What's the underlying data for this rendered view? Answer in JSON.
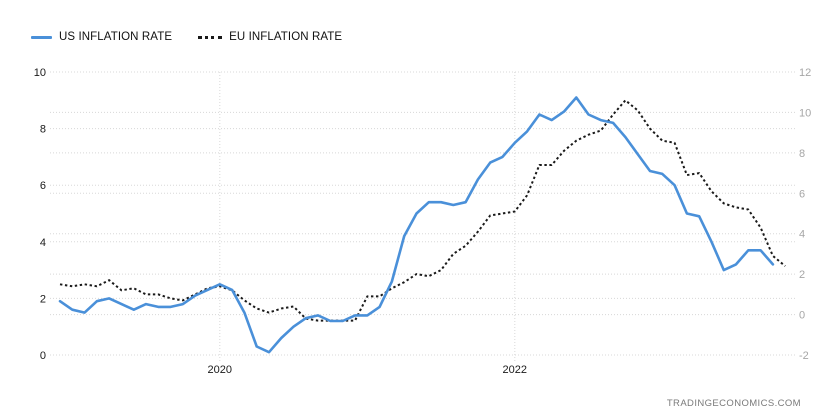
{
  "watermark": "TRADINGECONOMICS.COM",
  "colors": {
    "us_line": "#4a90d9",
    "eu_line": "#1a1a1a",
    "grid": "#d8d8d8",
    "axis_text": "#1a1a1a",
    "axis_text_right": "#a6a6a6",
    "watermark": "#7a7a7a",
    "background": "#ffffff"
  },
  "chart_data": {
    "type": "line",
    "title": "",
    "interval": "monthly",
    "x_start": "2018-12",
    "grid": true,
    "legend_position": "top-left",
    "x_ticks": [
      {
        "label": "2020",
        "month_index": 13
      },
      {
        "label": "2022",
        "month_index": 37
      }
    ],
    "left_axis": {
      "min": 0,
      "max": 10,
      "ticks": [
        0,
        2,
        4,
        6,
        8,
        10
      ]
    },
    "right_axis": {
      "min": -2,
      "max": 12,
      "ticks": [
        -2,
        0,
        2,
        4,
        6,
        8,
        10,
        12
      ]
    },
    "series": [
      {
        "key": "us",
        "name": "US INFLATION RATE",
        "axis": "left",
        "style": "solid",
        "color": "#4a90d9",
        "values": [
          1.9,
          1.6,
          1.5,
          1.9,
          2.0,
          1.8,
          1.6,
          1.8,
          1.7,
          1.7,
          1.8,
          2.1,
          2.3,
          2.5,
          2.3,
          1.5,
          0.3,
          0.1,
          0.6,
          1.0,
          1.3,
          1.4,
          1.2,
          1.2,
          1.4,
          1.4,
          1.7,
          2.6,
          4.2,
          5.0,
          5.4,
          5.4,
          5.3,
          5.4,
          6.2,
          6.8,
          7.0,
          7.5,
          7.9,
          8.5,
          8.3,
          8.6,
          9.1,
          8.5,
          8.3,
          8.2,
          7.7,
          7.1,
          6.5,
          6.4,
          6.0,
          5.0,
          4.9,
          4.0,
          3.0,
          3.2,
          3.7,
          3.7,
          3.2
        ]
      },
      {
        "key": "eu",
        "name": "EU INFLATION RATE",
        "axis": "right",
        "style": "dotted",
        "color": "#1a1a1a",
        "values": [
          1.5,
          1.4,
          1.5,
          1.4,
          1.7,
          1.2,
          1.3,
          1.0,
          1.0,
          0.8,
          0.7,
          1.0,
          1.3,
          1.4,
          1.2,
          0.7,
          0.3,
          0.1,
          0.3,
          0.4,
          -0.2,
          -0.3,
          -0.3,
          -0.3,
          -0.3,
          0.9,
          0.9,
          1.3,
          1.6,
          2.0,
          1.9,
          2.2,
          3.0,
          3.4,
          4.1,
          4.9,
          5.0,
          5.1,
          5.9,
          7.4,
          7.4,
          8.1,
          8.6,
          8.9,
          9.1,
          9.9,
          10.6,
          10.1,
          9.2,
          8.6,
          8.5,
          6.9,
          7.0,
          6.1,
          5.5,
          5.3,
          5.2,
          4.3,
          2.9,
          2.4
        ]
      }
    ]
  }
}
